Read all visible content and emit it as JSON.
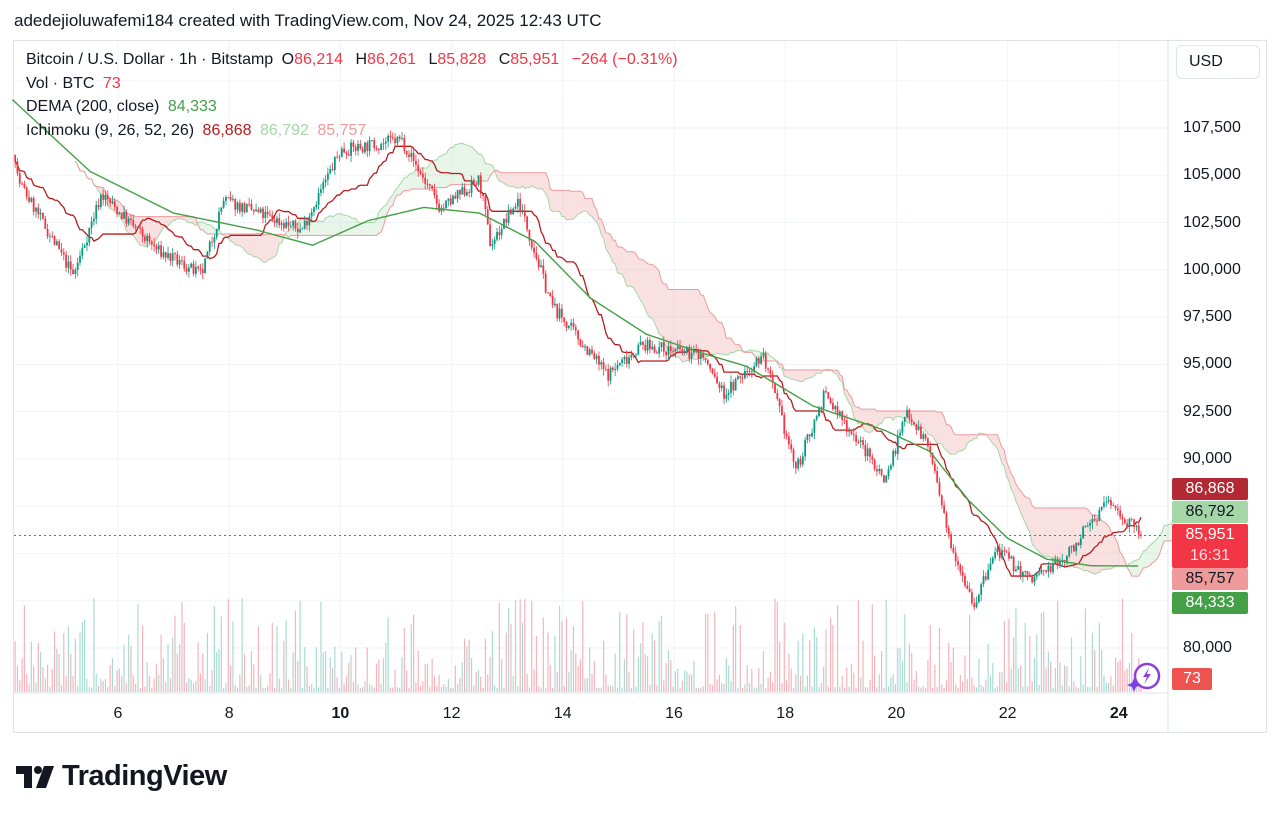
{
  "credit": "adedejioluwafemi184 created with TradingView.com, Nov 24, 2025 12:43 UTC",
  "header": {
    "symbol": "Bitcoin / U.S. Dollar · 1h · Bitstamp",
    "o_label": "O",
    "open": "86,214",
    "h_label": "H",
    "high": "86,261",
    "l_label": "L",
    "low": "85,828",
    "c_label": "C",
    "close": "85,951",
    "change": "−264 (−0.31%)"
  },
  "volume_legend": {
    "label": "Vol · BTC",
    "value": "73"
  },
  "dema_legend": {
    "label": "DEMA (200, close)",
    "value": "84,333"
  },
  "ichimoku_legend": {
    "label": "Ichimoku (9, 26, 52, 26)",
    "v1": "86,868",
    "v2": "86,792",
    "v3": "85,757"
  },
  "currency_button": "USD",
  "price_tags": {
    "ichimoku_base": "86,868",
    "ichimoku_lead1": "86,792",
    "last_price": "85,951",
    "countdown": "16:31",
    "ichimoku_lead2": "85,757",
    "dema": "84,333",
    "volume": "73"
  },
  "colors": {
    "up": "#089981",
    "down": "#f23645",
    "dema": "#43a047",
    "base": "#b71c1c",
    "cloud_up": "#a5d6a7",
    "cloud_down": "#ef9a9a"
  },
  "logo_text": "TradingView",
  "chart_data": {
    "type": "candlestick",
    "interval": "1h",
    "x_unit": "day of month (Nov 2025)",
    "x_ticks": [
      "6",
      "8",
      "10",
      "12",
      "14",
      "16",
      "18",
      "20",
      "22",
      "24"
    ],
    "bold_x_ticks": [
      "10",
      "24"
    ],
    "y_ticks": [
      "107,500",
      "105,000",
      "102,500",
      "100,000",
      "97,500",
      "95,000",
      "92,500",
      "90,000",
      "80,000"
    ],
    "y_range": [
      79000,
      110000
    ],
    "grid": true,
    "price_path": [
      [
        4.1,
        107400
      ],
      [
        4.2,
        104750
      ],
      [
        5.2,
        99700
      ],
      [
        5.7,
        104000
      ],
      [
        6.7,
        101050
      ],
      [
        7.5,
        99700
      ],
      [
        7.9,
        103700
      ],
      [
        9.3,
        102100
      ],
      [
        10.0,
        106300
      ],
      [
        11.1,
        106900
      ],
      [
        11.8,
        103200
      ],
      [
        12.5,
        104750
      ],
      [
        12.7,
        101300
      ],
      [
        13.2,
        103700
      ],
      [
        13.8,
        98150
      ],
      [
        14.8,
        94450
      ],
      [
        15.4,
        96000
      ],
      [
        16.5,
        95500
      ],
      [
        16.9,
        93400
      ],
      [
        17.6,
        95500
      ],
      [
        18.2,
        89400
      ],
      [
        18.7,
        93400
      ],
      [
        19.3,
        91000
      ],
      [
        19.8,
        88900
      ],
      [
        20.2,
        92600
      ],
      [
        20.6,
        90500
      ],
      [
        20.9,
        86250
      ],
      [
        21.4,
        82300
      ],
      [
        21.8,
        85200
      ],
      [
        22.4,
        83600
      ],
      [
        23.0,
        84650
      ],
      [
        23.8,
        87800
      ],
      [
        24.4,
        85951
      ]
    ],
    "dema_path": [
      [
        4.1,
        109000
      ],
      [
        5.5,
        105200
      ],
      [
        7.0,
        103000
      ],
      [
        8.5,
        102100
      ],
      [
        9.5,
        101300
      ],
      [
        10.5,
        102600
      ],
      [
        11.5,
        103300
      ],
      [
        12.5,
        103000
      ],
      [
        13.5,
        101500
      ],
      [
        14.5,
        98500
      ],
      [
        15.5,
        96600
      ],
      [
        16.5,
        95600
      ],
      [
        17.3,
        94900
      ],
      [
        18.5,
        92800
      ],
      [
        19.8,
        91500
      ],
      [
        20.6,
        90400
      ],
      [
        21.3,
        87800
      ],
      [
        22.0,
        85800
      ],
      [
        22.7,
        84700
      ],
      [
        23.5,
        84350
      ],
      [
        24.4,
        84333
      ]
    ],
    "last_price": 85951,
    "volume_last": 73
  }
}
